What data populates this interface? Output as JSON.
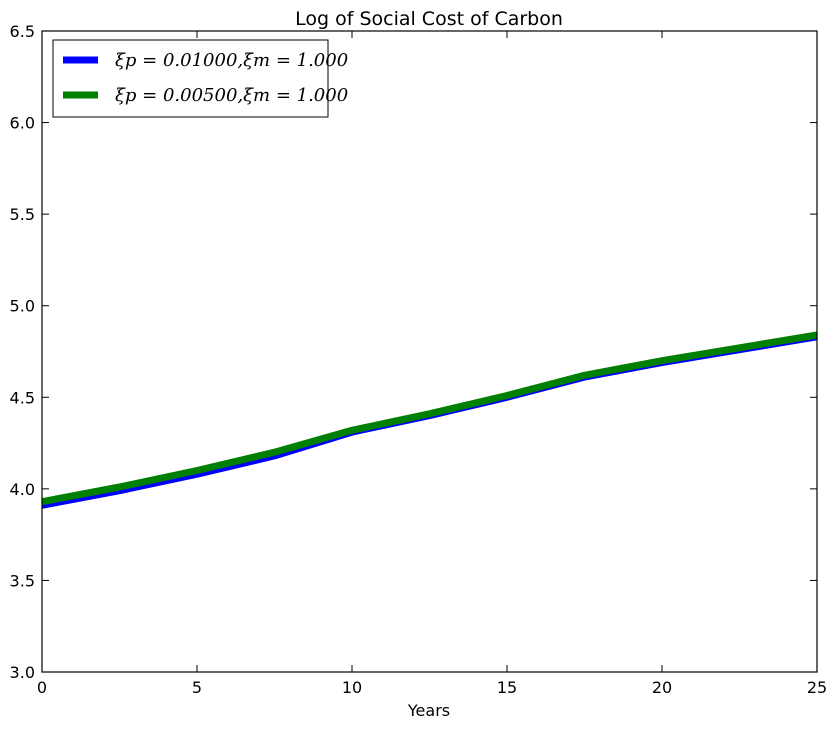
{
  "chart_data": {
    "type": "line",
    "title": "Log of Social Cost of Carbon",
    "xlabel": "Years",
    "ylabel": "",
    "xlim": [
      0,
      25
    ],
    "ylim": [
      3.0,
      6.5
    ],
    "xticks": [
      "0",
      "5",
      "10",
      "15",
      "20",
      "25"
    ],
    "yticks": [
      "3.0",
      "3.5",
      "4.0",
      "4.5",
      "5.0",
      "5.5",
      "6.0",
      "6.5"
    ],
    "grid": false,
    "legend_position": "top-left",
    "series": [
      {
        "name": "ξp = 0.01000,ξm = 1.000",
        "color": "#0000ff",
        "x": [
          0,
          2.5,
          5,
          7.5,
          10,
          12.5,
          15,
          17.5,
          20,
          22.5,
          25
        ],
        "y": [
          3.91,
          3.99,
          4.08,
          4.18,
          4.31,
          4.4,
          4.5,
          4.61,
          4.69,
          4.76,
          4.83
        ]
      },
      {
        "name": "ξp = 0.00500,ξm = 1.000",
        "color": "#008000",
        "x": [
          0,
          2.5,
          5,
          7.5,
          10,
          12.5,
          15,
          17.5,
          20,
          22.5,
          25
        ],
        "y": [
          3.93,
          4.01,
          4.1,
          4.2,
          4.32,
          4.41,
          4.51,
          4.62,
          4.7,
          4.77,
          4.84
        ]
      }
    ]
  }
}
